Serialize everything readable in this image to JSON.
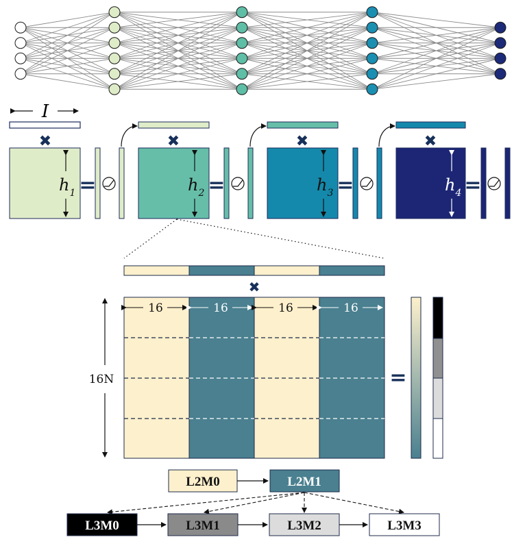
{
  "network": {
    "layers": [
      {
        "nodes": 4,
        "fill": "#ffffff"
      },
      {
        "nodes": 6,
        "fill": "#dfecc8"
      },
      {
        "nodes": 6,
        "fill": "#5fbea6"
      },
      {
        "nodes": 6,
        "fill": "#1a8fb2"
      },
      {
        "nodes": 4,
        "fill": "#1c2a78"
      }
    ]
  },
  "layer_blocks": {
    "input_label": "I",
    "operator_times": "✖",
    "operator_equals": "=",
    "blocks": [
      {
        "label_main": "h",
        "label_sub": "1",
        "color": "#dfecc8",
        "text_color": "#111111"
      },
      {
        "label_main": "h",
        "label_sub": "2",
        "color": "#66bea8",
        "text_color": "#111111"
      },
      {
        "label_main": "h",
        "label_sub": "3",
        "color": "#1489ab",
        "text_color": "#111111"
      },
      {
        "label_main": "h",
        "label_sub": "4",
        "color": "#1c2675",
        "text_color": "#ffffff"
      }
    ]
  },
  "zoom": {
    "column_width_label": "16",
    "row_label": "16N",
    "light_color": "#fdf0cc",
    "dark_color": "#4a8090"
  },
  "memory": {
    "l2": [
      {
        "label": "L2M0",
        "fill": "#fdf0cc",
        "text_color": "#111111"
      },
      {
        "label": "L2M1",
        "fill": "#4a8090",
        "text_color": "#ffffff"
      }
    ],
    "l3": [
      {
        "label": "L3M0",
        "fill": "#000000",
        "text_color": "#ffffff"
      },
      {
        "label": "L3M1",
        "fill": "#8a8a8a",
        "text_color": "#111111"
      },
      {
        "label": "L3M2",
        "fill": "#dcdcdc",
        "text_color": "#111111"
      },
      {
        "label": "L3M3",
        "fill": "#ffffff",
        "text_color": "#111111"
      }
    ],
    "output_vector_segments": [
      "#000000",
      "#909090",
      "#dcdcdc",
      "#ffffff"
    ]
  }
}
